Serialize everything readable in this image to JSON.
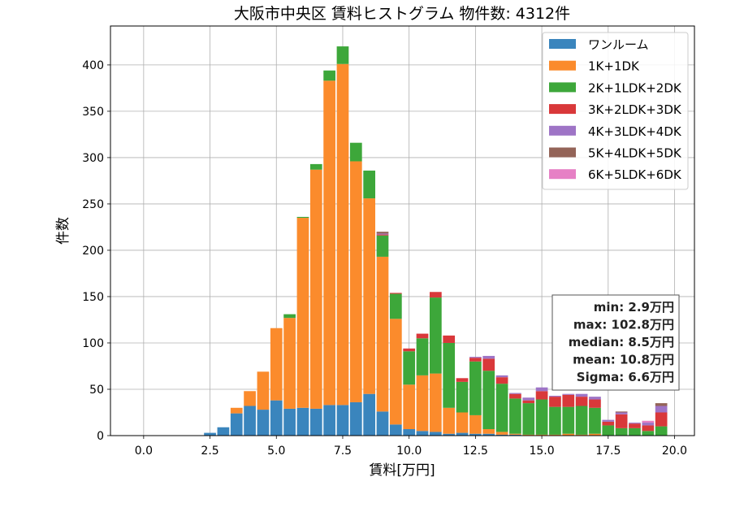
{
  "chart_data": {
    "type": "bar",
    "stacked": true,
    "title": "大阪市中央区 賃料ヒストグラム  物件数: 4312件",
    "xlabel": "賃料[万円]",
    "ylabel": "件数",
    "xlim": [
      -1.25,
      20.75
    ],
    "ylim": [
      0,
      442
    ],
    "xticks": [
      0.0,
      2.5,
      5.0,
      7.5,
      10.0,
      12.5,
      15.0,
      17.5,
      20.0
    ],
    "xtick_labels": [
      "0.0",
      "2.5",
      "5.0",
      "7.5",
      "10.0",
      "12.5",
      "15.0",
      "17.5",
      "20.0"
    ],
    "yticks": [
      0,
      50,
      100,
      150,
      200,
      250,
      300,
      350,
      400
    ],
    "ytick_labels": [
      "0",
      "50",
      "100",
      "150",
      "200",
      "250",
      "300",
      "350",
      "400"
    ],
    "grid": true,
    "legend_position": "top-right",
    "bin_width": 0.5,
    "x": [
      0.0,
      0.5,
      1.0,
      1.5,
      2.0,
      2.5,
      3.0,
      3.5,
      4.0,
      4.5,
      5.0,
      5.5,
      6.0,
      6.5,
      7.0,
      7.5,
      8.0,
      8.5,
      9.0,
      9.5,
      10.0,
      10.5,
      11.0,
      11.5,
      12.0,
      12.5,
      13.0,
      13.5,
      14.0,
      14.5,
      15.0,
      15.5,
      16.0,
      16.5,
      17.0,
      17.5,
      18.0,
      18.5,
      19.0,
      19.5
    ],
    "series": [
      {
        "name": "ワンルーム",
        "color": "#3a85bd",
        "values": [
          0,
          0,
          0,
          0,
          0,
          3,
          9,
          24,
          32,
          28,
          38,
          29,
          30,
          29,
          33,
          33,
          36,
          45,
          26,
          12,
          7,
          5,
          4,
          2,
          3,
          2,
          2,
          1,
          1,
          0,
          0,
          0,
          0,
          0,
          0,
          0,
          0,
          0,
          0,
          0
        ]
      },
      {
        "name": "1K+1DK",
        "color": "#fb8b2c",
        "values": [
          0,
          0,
          0,
          0,
          0,
          0,
          0,
          6,
          16,
          41,
          78,
          98,
          205,
          258,
          350,
          368,
          260,
          211,
          167,
          114,
          48,
          60,
          63,
          28,
          22,
          20,
          5,
          3,
          1,
          1,
          1,
          1,
          2,
          1,
          2,
          0,
          0,
          0,
          0,
          0
        ]
      },
      {
        "name": "2K+1LDK+2DK",
        "color": "#3da73a",
        "values": [
          0,
          0,
          0,
          0,
          0,
          0,
          0,
          0,
          0,
          0,
          0,
          4,
          1,
          6,
          11,
          19,
          20,
          30,
          23,
          27,
          36,
          40,
          82,
          70,
          33,
          58,
          63,
          52,
          38,
          34,
          38,
          30,
          29,
          31,
          28,
          11,
          8,
          8,
          5,
          10
        ]
      },
      {
        "name": "3K+2LDK+3DK",
        "color": "#d9383a",
        "values": [
          0,
          0,
          0,
          0,
          0,
          0,
          0,
          0,
          0,
          0,
          0,
          0,
          0,
          0,
          0,
          0,
          0,
          0,
          1,
          1,
          3,
          5,
          6,
          8,
          4,
          4,
          13,
          7,
          5,
          3,
          9,
          11,
          13,
          10,
          9,
          4,
          15,
          5,
          6,
          15
        ]
      },
      {
        "name": "4K+3LDK+4DK",
        "color": "#9e74c6",
        "values": [
          0,
          0,
          0,
          0,
          0,
          0,
          0,
          0,
          0,
          0,
          0,
          0,
          0,
          0,
          0,
          0,
          0,
          0,
          1,
          0,
          0,
          0,
          0,
          0,
          0,
          1,
          3,
          2,
          1,
          3,
          4,
          1,
          1,
          3,
          3,
          2,
          2,
          1,
          3,
          7
        ]
      },
      {
        "name": "5K+4LDK+5DK",
        "color": "#946458",
        "values": [
          0,
          0,
          0,
          0,
          0,
          0,
          0,
          0,
          0,
          0,
          0,
          0,
          0,
          0,
          0,
          0,
          0,
          0,
          2,
          0,
          0,
          0,
          0,
          0,
          0,
          0,
          0,
          0,
          0,
          0,
          0,
          0,
          0,
          0,
          0,
          0,
          1,
          0,
          0,
          3
        ]
      },
      {
        "name": "6K+5LDK+6DK",
        "color": "#e680c5",
        "values": [
          0,
          0,
          0,
          0,
          0,
          0,
          0,
          0,
          0,
          0,
          0,
          0,
          0,
          0,
          0,
          0,
          0,
          0,
          0,
          0,
          0,
          0,
          0,
          0,
          0,
          0,
          0,
          0,
          0,
          0,
          0,
          0,
          0,
          0,
          0,
          0,
          0,
          0,
          2,
          0
        ]
      }
    ],
    "stats_box": [
      "min: 2.9万円",
      "max: 102.8万円",
      "median: 8.5万円",
      "mean: 10.8万円",
      "Sigma: 6.6万円"
    ]
  }
}
